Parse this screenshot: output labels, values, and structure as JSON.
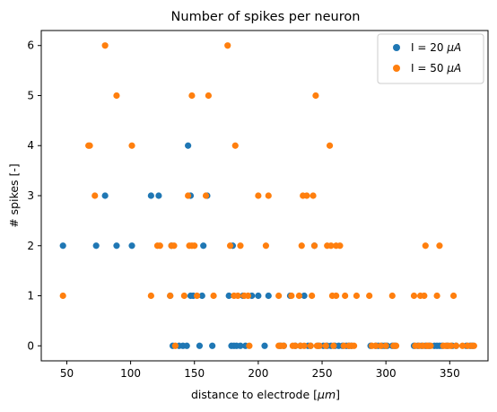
{
  "chart_data": {
    "type": "scatter",
    "title": "Number of spikes per neuron",
    "xlabel_prefix": "distance to electrode [",
    "xlabel_unit": "μm",
    "xlabel_suffix": "]",
    "ylabel": "# spikes [-]",
    "xlim": [
      30,
      380
    ],
    "ylim": [
      -0.3,
      6.3
    ],
    "xticks": [
      50,
      100,
      150,
      200,
      250,
      300,
      350
    ],
    "yticks": [
      0,
      1,
      2,
      3,
      4,
      5,
      6
    ],
    "grid": false,
    "legend_position": "top-right",
    "series": [
      {
        "name": "I = 20 μA",
        "legend_prefix": "I = 20 ",
        "legend_unit": "μA",
        "color": "#1f77b4",
        "points": [
          [
            47,
            2
          ],
          [
            73,
            2
          ],
          [
            80,
            3
          ],
          [
            89,
            2
          ],
          [
            101,
            2
          ],
          [
            116,
            3
          ],
          [
            122,
            3
          ],
          [
            131,
            1
          ],
          [
            132,
            2
          ],
          [
            133,
            0
          ],
          [
            138,
            0
          ],
          [
            141,
            0
          ],
          [
            144,
            0
          ],
          [
            145,
            4
          ],
          [
            147,
            1
          ],
          [
            147,
            3
          ],
          [
            149,
            1
          ],
          [
            154,
            0
          ],
          [
            156,
            1
          ],
          [
            157,
            2
          ],
          [
            160,
            3
          ],
          [
            164,
            0
          ],
          [
            177,
            1
          ],
          [
            179,
            0
          ],
          [
            180,
            2
          ],
          [
            181,
            0
          ],
          [
            183,
            0
          ],
          [
            186,
            0
          ],
          [
            188,
            1
          ],
          [
            190,
            0
          ],
          [
            195,
            1
          ],
          [
            200,
            1
          ],
          [
            205,
            0
          ],
          [
            208,
            1
          ],
          [
            217,
            0
          ],
          [
            220,
            0
          ],
          [
            225,
            1
          ],
          [
            229,
            0
          ],
          [
            233,
            0
          ],
          [
            236,
            1
          ],
          [
            239,
            0
          ],
          [
            241,
            0
          ],
          [
            244,
            2
          ],
          [
            247,
            0
          ],
          [
            251,
            0
          ],
          [
            254,
            0
          ],
          [
            257,
            0
          ],
          [
            260,
            0
          ],
          [
            263,
            0
          ],
          [
            266,
            0
          ],
          [
            269,
            0
          ],
          [
            271,
            0
          ],
          [
            273,
            0
          ],
          [
            288,
            0
          ],
          [
            292,
            0
          ],
          [
            294,
            0
          ],
          [
            297,
            0
          ],
          [
            299,
            0
          ],
          [
            301,
            0
          ],
          [
            305,
            0
          ],
          [
            307,
            0
          ],
          [
            322,
            0
          ],
          [
            325,
            0
          ],
          [
            328,
            0
          ],
          [
            331,
            0
          ],
          [
            334,
            0
          ],
          [
            338,
            0
          ],
          [
            340,
            0
          ],
          [
            342,
            0
          ],
          [
            344,
            0
          ],
          [
            348,
            0
          ],
          [
            352,
            0
          ],
          [
            355,
            0
          ],
          [
            363,
            0
          ],
          [
            366,
            0
          ],
          [
            368,
            0
          ]
        ]
      },
      {
        "name": "I = 50 μA",
        "legend_prefix": "I = 50 ",
        "legend_unit": "μA",
        "color": "#ff7f0e",
        "points": [
          [
            47,
            1
          ],
          [
            67,
            4
          ],
          [
            68,
            4
          ],
          [
            72,
            3
          ],
          [
            80,
            6
          ],
          [
            89,
            5
          ],
          [
            101,
            4
          ],
          [
            116,
            1
          ],
          [
            121,
            2
          ],
          [
            123,
            2
          ],
          [
            131,
            1
          ],
          [
            132,
            2
          ],
          [
            134,
            2
          ],
          [
            135,
            0
          ],
          [
            142,
            1
          ],
          [
            145,
            3
          ],
          [
            146,
            2
          ],
          [
            148,
            5
          ],
          [
            148,
            2
          ],
          [
            150,
            2
          ],
          [
            152,
            1
          ],
          [
            159,
            3
          ],
          [
            161,
            5
          ],
          [
            165,
            1
          ],
          [
            176,
            6
          ],
          [
            178,
            2
          ],
          [
            181,
            1
          ],
          [
            182,
            4
          ],
          [
            184,
            1
          ],
          [
            186,
            2
          ],
          [
            189,
            1
          ],
          [
            192,
            1
          ],
          [
            193,
            0
          ],
          [
            200,
            3
          ],
          [
            206,
            2
          ],
          [
            208,
            3
          ],
          [
            216,
            0
          ],
          [
            216,
            1
          ],
          [
            218,
            0
          ],
          [
            220,
            0
          ],
          [
            226,
            1
          ],
          [
            227,
            0
          ],
          [
            229,
            0
          ],
          [
            232,
            1
          ],
          [
            233,
            0
          ],
          [
            234,
            2
          ],
          [
            235,
            3
          ],
          [
            236,
            0
          ],
          [
            238,
            3
          ],
          [
            241,
            0
          ],
          [
            242,
            1
          ],
          [
            243,
            3
          ],
          [
            244,
            2
          ],
          [
            245,
            5
          ],
          [
            246,
            0
          ],
          [
            248,
            0
          ],
          [
            253,
            0
          ],
          [
            254,
            2
          ],
          [
            256,
            4
          ],
          [
            257,
            2
          ],
          [
            258,
            1
          ],
          [
            259,
            0
          ],
          [
            261,
            1
          ],
          [
            261,
            2
          ],
          [
            264,
            2
          ],
          [
            267,
            0
          ],
          [
            268,
            1
          ],
          [
            271,
            0
          ],
          [
            273,
            0
          ],
          [
            275,
            0
          ],
          [
            277,
            1
          ],
          [
            287,
            1
          ],
          [
            289,
            0
          ],
          [
            292,
            0
          ],
          [
            296,
            0
          ],
          [
            300,
            0
          ],
          [
            305,
            1
          ],
          [
            306,
            0
          ],
          [
            308,
            0
          ],
          [
            322,
            1
          ],
          [
            323,
            0
          ],
          [
            326,
            0
          ],
          [
            327,
            1
          ],
          [
            329,
            0
          ],
          [
            330,
            1
          ],
          [
            331,
            2
          ],
          [
            332,
            0
          ],
          [
            333,
            0
          ],
          [
            335,
            0
          ],
          [
            340,
            1
          ],
          [
            342,
            2
          ],
          [
            345,
            0
          ],
          [
            347,
            0
          ],
          [
            349,
            0
          ],
          [
            351,
            0
          ],
          [
            353,
            1
          ],
          [
            355,
            0
          ],
          [
            360,
            0
          ],
          [
            364,
            0
          ],
          [
            367,
            0
          ],
          [
            369,
            0
          ]
        ]
      }
    ]
  }
}
